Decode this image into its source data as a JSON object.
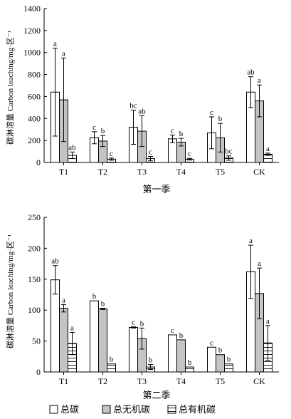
{
  "chart_data": [
    {
      "type": "bar",
      "panel_label": "第一季",
      "ylabel": "碳淋溶量 Carbon leaching/mg·区⁻¹",
      "ylim": [
        0,
        1400
      ],
      "yticks": [
        0,
        200,
        400,
        600,
        800,
        1000,
        1200,
        1400
      ],
      "categories": [
        "T1",
        "T2",
        "T3",
        "T4",
        "T5",
        "CK"
      ],
      "series": [
        {
          "name": "总碳",
          "values": [
            640,
            225,
            320,
            215,
            270,
            640
          ],
          "errors": [
            400,
            55,
            155,
            35,
            145,
            140
          ],
          "letters": [
            "a",
            "c",
            "bc",
            "c",
            "c",
            "ab"
          ]
        },
        {
          "name": "总无机碳",
          "values": [
            570,
            195,
            285,
            185,
            225,
            560
          ],
          "errors": [
            380,
            50,
            140,
            35,
            130,
            145
          ],
          "letters": [
            "a",
            "b",
            "ab",
            "b",
            "b",
            "a"
          ]
        },
        {
          "name": "总有机碳",
          "values": [
            65,
            30,
            35,
            30,
            40,
            75
          ],
          "errors": [
            30,
            10,
            20,
            8,
            20,
            10
          ],
          "letters": [
            "ab",
            "c",
            "c",
            "c",
            "bc",
            "a"
          ]
        }
      ]
    },
    {
      "type": "bar",
      "panel_label": "第二季",
      "ylabel": "碳淋溶量 Carbon leaching/mg·区⁻¹",
      "ylim": [
        0,
        250
      ],
      "yticks": [
        0,
        50,
        100,
        150,
        200,
        250
      ],
      "categories": [
        "T1",
        "T2",
        "T3",
        "T4",
        "T5",
        "CK"
      ],
      "series": [
        {
          "name": "总碳",
          "values": [
            149,
            115,
            72,
            60,
            40,
            162
          ],
          "errors": [
            23,
            0,
            1,
            0,
            0,
            43
          ],
          "letters": [
            "ab",
            "b",
            "c",
            "c",
            "c",
            "a"
          ]
        },
        {
          "name": "总无机碳",
          "values": [
            103,
            102,
            54,
            52,
            28,
            127
          ],
          "errors": [
            6,
            1,
            17,
            0,
            0,
            41
          ],
          "letters": [
            "a",
            "b",
            "b",
            "b",
            "b",
            "a"
          ]
        },
        {
          "name": "总有机碳",
          "values": [
            46,
            13,
            8,
            8,
            13,
            47
          ],
          "errors": [
            18,
            0,
            4,
            0,
            0,
            28
          ],
          "letters": [
            "a",
            "b",
            "b",
            "b",
            "b",
            "a"
          ]
        }
      ]
    }
  ],
  "legend": [
    {
      "label": "总碳",
      "pattern": "white"
    },
    {
      "label": "总无机碳",
      "pattern": "gray"
    },
    {
      "label": "总有机碳",
      "pattern": "hatch"
    }
  ],
  "colors": {
    "bar_total": "#ffffff",
    "bar_inorganic": "#c4c4c4",
    "bar_organic": "#ffffff",
    "stroke": "#000000"
  }
}
